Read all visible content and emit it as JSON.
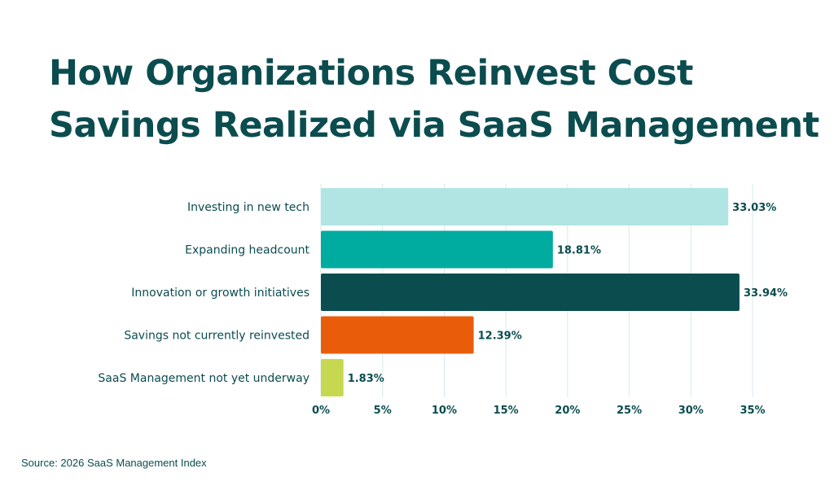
{
  "title_lines": [
    "How Organizations Reinvest Cost",
    "Savings Realized via SaaS Management"
  ],
  "source": "Source: 2026 SaaS Management Index",
  "chart_data": {
    "type": "bar",
    "orientation": "horizontal",
    "title": "How Organizations Reinvest Cost Savings Realized via SaaS Management",
    "xlabel": "",
    "ylabel": "",
    "categories": [
      "Investing in new tech",
      "Expanding headcount",
      "Innovation or growth initiatives",
      "Savings not currently reinvested",
      "SaaS Management not yet underway"
    ],
    "values": [
      33.03,
      18.81,
      33.94,
      12.39,
      1.83
    ],
    "value_labels": [
      "33.03%",
      "18.81%",
      "33.94%",
      "12.39%",
      "1.83%"
    ],
    "bar_colors": [
      "#b1e5e3",
      "#00ab9f",
      "#0b4c4f",
      "#e95d0a",
      "#c6d84f"
    ],
    "xlim": [
      0,
      35
    ],
    "x_ticks": [
      0,
      5,
      10,
      15,
      20,
      25,
      30,
      35
    ],
    "x_tick_labels": [
      "0%",
      "5%",
      "10%",
      "15%",
      "20%",
      "25%",
      "30%",
      "35%"
    ],
    "grid": "vertical",
    "legend": "none"
  },
  "colors": {
    "title": "#0b4c4f",
    "text": "#0b4c4f",
    "grid": "#d6ebea"
  }
}
